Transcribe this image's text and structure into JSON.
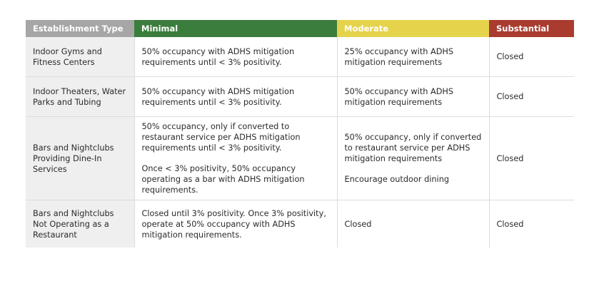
{
  "headers": {
    "type": "Establishment Type",
    "minimal": "Minimal",
    "moderate": "Moderate",
    "substantial": "Substantial"
  },
  "colors": {
    "type": "#a6a6a6",
    "minimal": "#3b7d3c",
    "moderate": "#e6d34c",
    "substantial": "#a93b2f"
  },
  "rows": [
    {
      "type": "Indoor Gyms and Fitness Centers",
      "minimal": "50% occupancy with ADHS mitigation requirements until < 3% positivity.",
      "moderate": "25% occupancy with ADHS mitigation requirements",
      "substantial": "Closed"
    },
    {
      "type": "Indoor Theaters, Water Parks and Tubing",
      "minimal": "50% occupancy with ADHS mitigation requirements until < 3% positivity.",
      "moderate": "50% occupancy with ADHS mitigation requirements",
      "substantial": "Closed"
    },
    {
      "type": "Bars and Nightclubs Providing Dine-In Services",
      "minimal": "50% occupancy, only if converted to restaurant service per ADHS mitigation requirements until < 3% positivity.",
      "minimal_2": "Once < 3% positivity, 50% occupancy operating as a bar with ADHS mitigation requirements.",
      "moderate": "50% occupancy, only if converted to restaurant service per ADHS mitigation requirements",
      "moderate_2": "Encourage outdoor dining",
      "substantial": "Closed"
    },
    {
      "type": "Bars and Nightclubs Not Operating as a Restaurant",
      "minimal": "Closed until 3% positivity. Once 3% positivity, operate at 50% occupancy with ADHS mitigation requirements.",
      "moderate": "Closed",
      "substantial": "Closed"
    }
  ]
}
